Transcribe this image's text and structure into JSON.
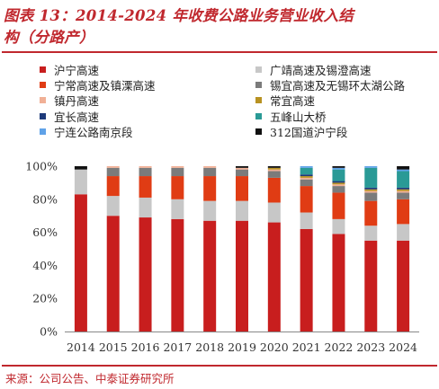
{
  "title_line1": "图表 13：2014-2024 年收费公路业务营业收入结",
  "title_line2": "构（分路产）",
  "source": "来源：公司公告、中泰证券研究所",
  "chart_data": {
    "type": "bar",
    "stacked": true,
    "categories": [
      "2014",
      "2015",
      "2016",
      "2017",
      "2018",
      "2019",
      "2020",
      "2021",
      "2022",
      "2023",
      "2024"
    ],
    "ylim": [
      0,
      100
    ],
    "yticks": [
      "0%",
      "20%",
      "40%",
      "60%",
      "80%",
      "100%"
    ],
    "legend_position": "top",
    "series": [
      {
        "name": "沪宁高速",
        "color": "#c81e1e",
        "values": [
          83,
          70,
          69,
          68,
          67,
          67,
          66,
          62,
          59,
          55,
          55
        ]
      },
      {
        "name": "广靖高速及锡澄高速",
        "color": "#c7c7c7",
        "values": [
          15,
          12,
          12,
          12,
          12,
          12,
          12,
          10,
          9,
          9,
          10
        ]
      },
      {
        "name": "宁常高速及镇溧高速",
        "color": "#e03c14",
        "values": [
          0,
          12,
          13,
          14,
          15,
          15,
          15,
          16,
          16,
          15,
          15
        ]
      },
      {
        "name": "锡宜高速及无锡环太湖公路",
        "color": "#7b7b7b",
        "values": [
          0,
          5,
          5,
          5,
          5,
          4,
          4,
          4,
          4,
          5,
          4
        ]
      },
      {
        "name": "镇丹高速",
        "color": "#f1b096",
        "values": [
          0,
          1,
          1,
          1,
          1,
          1,
          1,
          1,
          1,
          1,
          1
        ]
      },
      {
        "name": "常宜高速",
        "color": "#b89222",
        "values": [
          0,
          0,
          0,
          0,
          0,
          0,
          1,
          1,
          1,
          1,
          1
        ]
      },
      {
        "name": "宜长高速",
        "color": "#1e3a7a",
        "values": [
          0,
          0,
          0,
          0,
          0,
          0,
          0,
          1,
          1,
          1,
          1
        ]
      },
      {
        "name": "五峰山大桥",
        "color": "#2a9a96",
        "values": [
          0,
          0,
          0,
          0,
          0,
          0,
          0,
          4,
          7,
          12,
          10
        ]
      },
      {
        "name": "宁连公路南京段",
        "color": "#5fa2e8",
        "values": [
          0,
          0,
          0,
          0,
          0,
          0,
          0,
          1,
          1,
          1,
          1
        ]
      },
      {
        "name": "312国道沪宁段",
        "color": "#111111",
        "values": [
          2,
          0,
          0,
          0,
          0,
          1,
          1,
          0,
          1,
          0,
          2
        ]
      }
    ]
  }
}
